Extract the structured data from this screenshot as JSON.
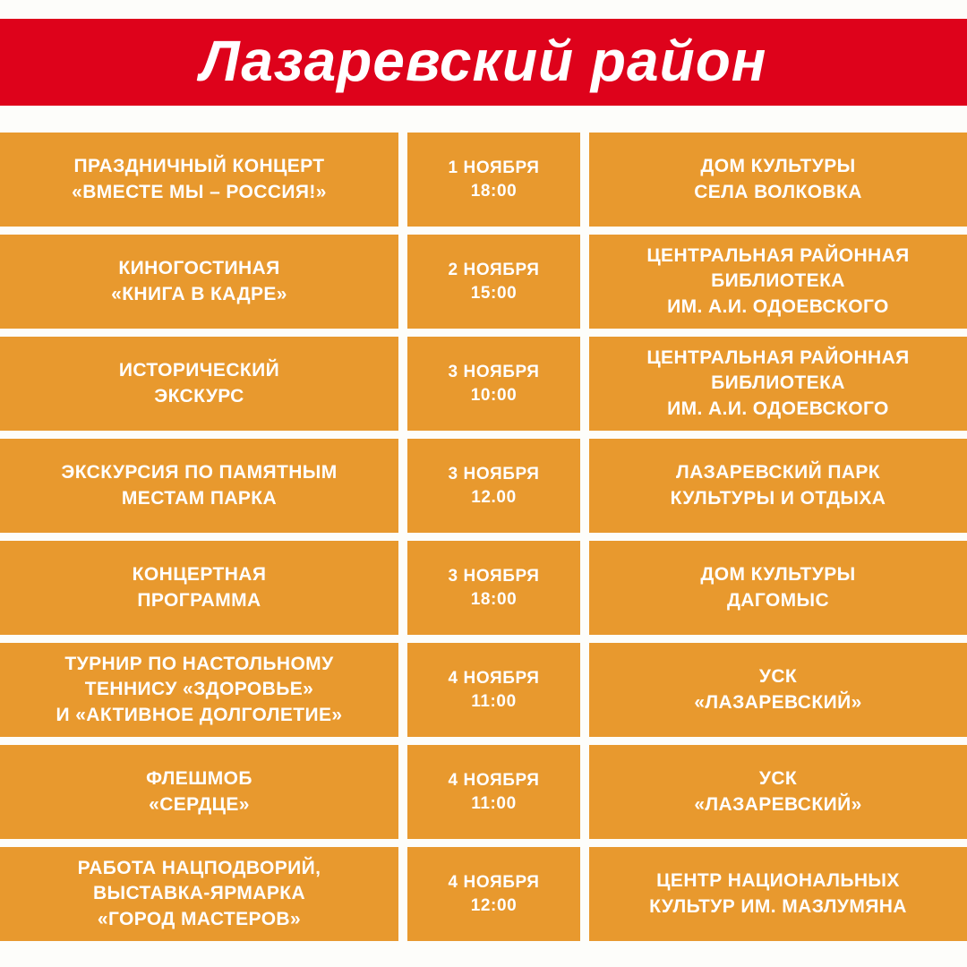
{
  "header": {
    "title": "Лазаревский район"
  },
  "colors": {
    "banner_red": "#de021b",
    "cell_orange": "#e8992e",
    "text_white": "#ffffff",
    "page_bg": "#fdfdfa"
  },
  "schedule": {
    "rows": [
      {
        "event": "ПРАЗДНИЧНЫЙ КОНЦЕРТ\n«ВМЕСТЕ МЫ – РОССИЯ!»",
        "datetime": "1 НОЯБРЯ\n18:00",
        "venue": "ДОМ КУЛЬТУРЫ\nСЕЛА ВОЛКОВКА"
      },
      {
        "event": "КИНОГОСТИНАЯ\n«КНИГА В КАДРЕ»",
        "datetime": "2 НОЯБРЯ\n15:00",
        "venue": "ЦЕНТРАЛЬНАЯ РАЙОННАЯ\nБИБЛИОТЕКА\nИМ. А.И. ОДОЕВСКОГО"
      },
      {
        "event": "ИСТОРИЧЕСКИЙ\nЭКСКУРС",
        "datetime": "3 НОЯБРЯ\n10:00",
        "venue": "ЦЕНТРАЛЬНАЯ РАЙОННАЯ\nБИБЛИОТЕКА\nИМ. А.И. ОДОЕВСКОГО"
      },
      {
        "event": "ЭКСКУРСИЯ ПО ПАМЯТНЫМ\nМЕСТАМ ПАРКА",
        "datetime": "3 НОЯБРЯ\n12.00",
        "venue": "ЛАЗАРЕВСКИЙ ПАРК\nКУЛЬТУРЫ И ОТДЫХА"
      },
      {
        "event": "КОНЦЕРТНАЯ\nПРОГРАММА",
        "datetime": "3 НОЯБРЯ\n18:00",
        "venue": "ДОМ КУЛЬТУРЫ\nДАГОМЫС"
      },
      {
        "event": "ТУРНИР ПО НАСТОЛЬНОМУ\nТЕННИСУ «ЗДОРОВЬЕ»\nИ «АКТИВНОЕ ДОЛГОЛЕТИЕ»",
        "datetime": "4 НОЯБРЯ\n11:00",
        "venue": "УСК\n«ЛАЗАРЕВСКИЙ»"
      },
      {
        "event": "ФЛЕШМОБ\n«СЕРДЦЕ»",
        "datetime": "4 НОЯБРЯ\n11:00",
        "venue": "УСК\n«ЛАЗАРЕВСКИЙ»"
      },
      {
        "event": "РАБОТА НАЦПОДВОРИЙ,\nВЫСТАВКА-ЯРМАРКА\n«ГОРОД МАСТЕРОВ»",
        "datetime": "4 НОЯБРЯ\n12:00",
        "venue": "ЦЕНТР НАЦИОНАЛЬНЫХ\nКУЛЬТУР ИМ. МАЗЛУМЯНА"
      }
    ]
  }
}
